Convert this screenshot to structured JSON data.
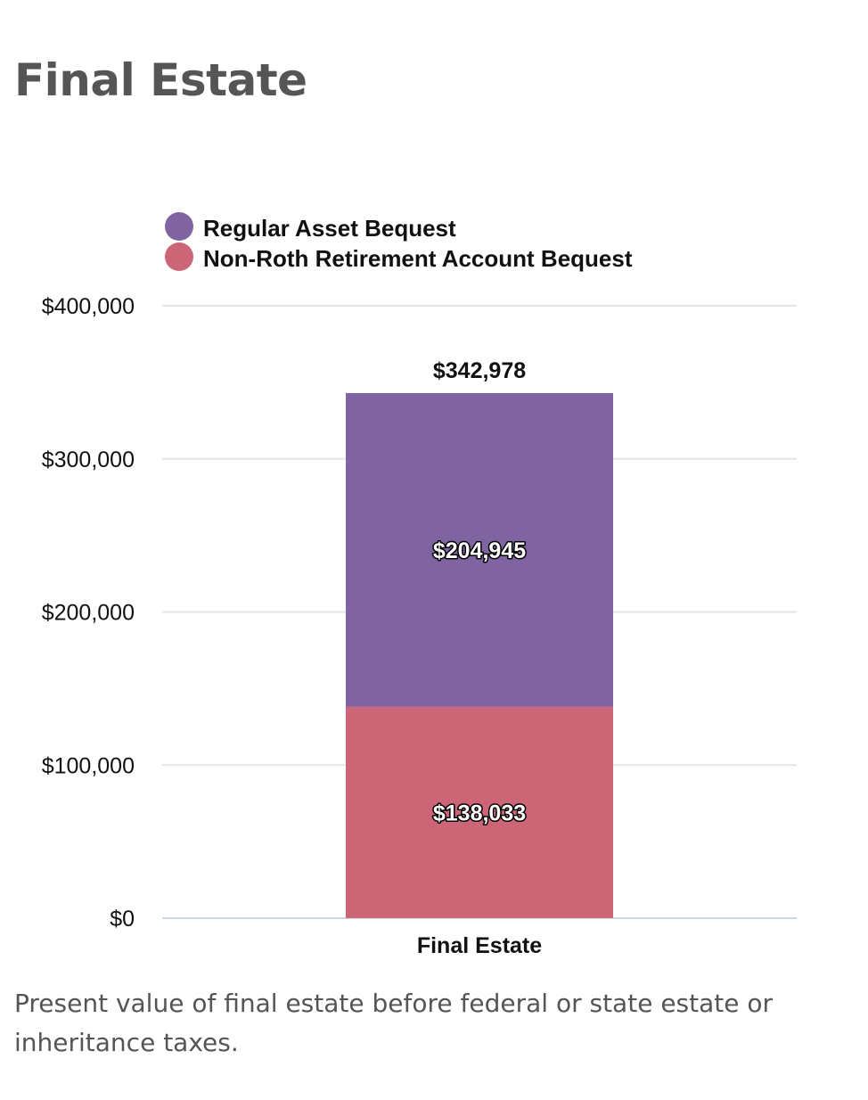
{
  "page": {
    "title": "Final Estate",
    "caption": "Present value of final estate before federal or state estate or inheritance taxes."
  },
  "chart_data": {
    "type": "bar",
    "stacked": true,
    "title": "",
    "xlabel": "",
    "ylabel": "",
    "categories": [
      "Final Estate"
    ],
    "series": [
      {
        "name": "Regular Asset Bequest",
        "color": "#8064a2",
        "values": [
          204945
        ],
        "value_labels": [
          "$204,945"
        ]
      },
      {
        "name": "Non-Roth Retirement Account Bequest",
        "color": "#cc6677",
        "values": [
          138033
        ],
        "value_labels": [
          "$138,033"
        ]
      }
    ],
    "totals": [
      342978
    ],
    "total_labels": [
      "$342,978"
    ],
    "ylim": [
      0,
      400000
    ],
    "yticks": [
      0,
      100000,
      200000,
      300000,
      400000
    ],
    "ytick_labels": [
      "$0",
      "$100,000",
      "$200,000",
      "$300,000",
      "$400,000"
    ],
    "grid": true,
    "gridline_color": "#e6e6e6",
    "legend": "top-left"
  }
}
